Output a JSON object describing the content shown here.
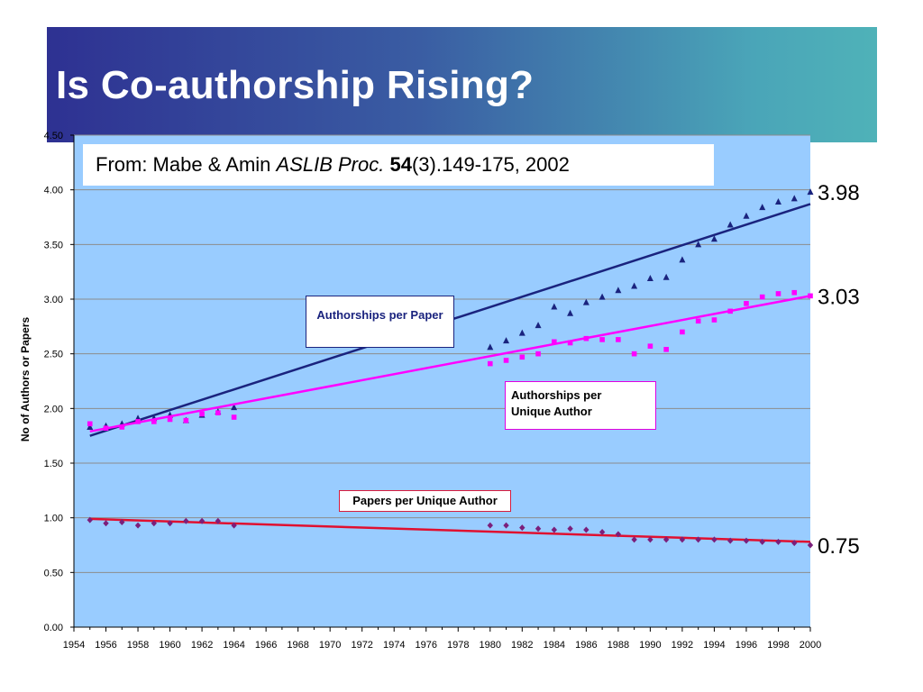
{
  "slide": {
    "title": "Is Co-authorship Rising?",
    "colors": {
      "title_bar_left": "#2e3192",
      "title_bar_right": "#4fb2b8",
      "plot_background": "#99ccff"
    }
  },
  "source": {
    "prefix": "From: Mabe & Amin ",
    "journal": "ASLIB Proc.",
    "volume": "54",
    "rest": "(3).149-175, 2002"
  },
  "chart_data": {
    "type": "scatter",
    "ylabel": "No of Authors or Papers",
    "xlabel": "",
    "ylim": [
      0,
      4.5
    ],
    "xlim": [
      1954,
      2000
    ],
    "x_ticks": [
      1954,
      1956,
      1958,
      1960,
      1962,
      1964,
      1966,
      1968,
      1970,
      1972,
      1974,
      1976,
      1978,
      1980,
      1982,
      1984,
      1986,
      1988,
      1990,
      1992,
      1994,
      1996,
      1998,
      2000
    ],
    "y_ticks": [
      "0.00",
      "0.50",
      "1.00",
      "1.50",
      "2.00",
      "2.50",
      "3.00",
      "3.50",
      "4.00",
      "4.50"
    ],
    "grid": "horizontal",
    "series": [
      {
        "name": "Authorships per Paper",
        "color": "#1a237e",
        "marker": "triangle",
        "end_label": "3.98",
        "trend": [
          [
            1955,
            1.75
          ],
          [
            2000,
            3.87
          ]
        ],
        "points": [
          [
            1955,
            1.83
          ],
          [
            1956,
            1.84
          ],
          [
            1957,
            1.86
          ],
          [
            1958,
            1.91
          ],
          [
            1959,
            1.91
          ],
          [
            1960,
            1.94
          ],
          [
            1961,
            1.89
          ],
          [
            1962,
            1.94
          ],
          [
            1963,
            1.97
          ],
          [
            1964,
            2.01
          ],
          [
            1980,
            2.56
          ],
          [
            1981,
            2.62
          ],
          [
            1982,
            2.69
          ],
          [
            1983,
            2.76
          ],
          [
            1984,
            2.93
          ],
          [
            1985,
            2.87
          ],
          [
            1986,
            2.97
          ],
          [
            1987,
            3.02
          ],
          [
            1988,
            3.08
          ],
          [
            1989,
            3.12
          ],
          [
            1990,
            3.19
          ],
          [
            1991,
            3.2
          ],
          [
            1992,
            3.36
          ],
          [
            1993,
            3.5
          ],
          [
            1994,
            3.55
          ],
          [
            1995,
            3.68
          ],
          [
            1996,
            3.76
          ],
          [
            1997,
            3.84
          ],
          [
            1998,
            3.89
          ],
          [
            1999,
            3.92
          ],
          [
            2000,
            3.98
          ]
        ]
      },
      {
        "name": "Authorships per Unique Author",
        "color": "#ff00ff",
        "marker": "square",
        "end_label": "3.03",
        "trend": [
          [
            1955,
            1.79
          ],
          [
            2000,
            3.03
          ]
        ],
        "points": [
          [
            1955,
            1.86
          ],
          [
            1956,
            1.82
          ],
          [
            1957,
            1.83
          ],
          [
            1958,
            1.88
          ],
          [
            1959,
            1.88
          ],
          [
            1960,
            1.9
          ],
          [
            1961,
            1.89
          ],
          [
            1962,
            1.95
          ],
          [
            1963,
            1.96
          ],
          [
            1964,
            1.92
          ],
          [
            1980,
            2.41
          ],
          [
            1981,
            2.44
          ],
          [
            1982,
            2.47
          ],
          [
            1983,
            2.5
          ],
          [
            1984,
            2.61
          ],
          [
            1985,
            2.6
          ],
          [
            1986,
            2.64
          ],
          [
            1987,
            2.63
          ],
          [
            1988,
            2.63
          ],
          [
            1989,
            2.5
          ],
          [
            1990,
            2.57
          ],
          [
            1991,
            2.54
          ],
          [
            1992,
            2.7
          ],
          [
            1993,
            2.8
          ],
          [
            1994,
            2.81
          ],
          [
            1995,
            2.89
          ],
          [
            1996,
            2.96
          ],
          [
            1997,
            3.02
          ],
          [
            1998,
            3.05
          ],
          [
            1999,
            3.06
          ],
          [
            2000,
            3.03
          ]
        ]
      },
      {
        "name": "Papers per Unique Author",
        "color": "#e01030",
        "point_color": "#7b1f7b",
        "marker": "diamond",
        "end_label": "0.75",
        "trend": [
          [
            1955,
            0.99
          ],
          [
            2000,
            0.78
          ]
        ],
        "points": [
          [
            1955,
            0.98
          ],
          [
            1956,
            0.95
          ],
          [
            1957,
            0.96
          ],
          [
            1958,
            0.93
          ],
          [
            1959,
            0.95
          ],
          [
            1960,
            0.95
          ],
          [
            1961,
            0.97
          ],
          [
            1962,
            0.97
          ],
          [
            1963,
            0.97
          ],
          [
            1964,
            0.93
          ],
          [
            1980,
            0.93
          ],
          [
            1981,
            0.93
          ],
          [
            1982,
            0.91
          ],
          [
            1983,
            0.9
          ],
          [
            1984,
            0.89
          ],
          [
            1985,
            0.9
          ],
          [
            1986,
            0.89
          ],
          [
            1987,
            0.87
          ],
          [
            1988,
            0.85
          ],
          [
            1989,
            0.8
          ],
          [
            1990,
            0.8
          ],
          [
            1991,
            0.8
          ],
          [
            1992,
            0.8
          ],
          [
            1993,
            0.8
          ],
          [
            1994,
            0.8
          ],
          [
            1995,
            0.79
          ],
          [
            1996,
            0.79
          ],
          [
            1997,
            0.78
          ],
          [
            1998,
            0.78
          ],
          [
            1999,
            0.77
          ],
          [
            2000,
            0.75
          ]
        ]
      }
    ],
    "labels": {
      "app": "Authorships per Paper",
      "apua": [
        "Authorships per",
        "Unique Author"
      ],
      "ppua": "Papers per Unique Author"
    }
  }
}
